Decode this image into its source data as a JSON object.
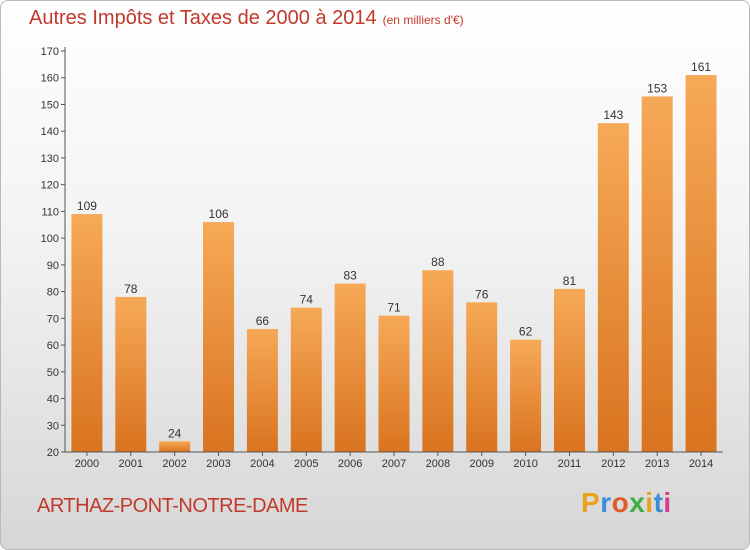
{
  "chart_data": {
    "type": "bar",
    "title": "Autres Impôts et Taxes de 2000 à 2014",
    "subtitle": "(en milliers d'€)",
    "categories": [
      "2000",
      "2001",
      "2002",
      "2003",
      "2004",
      "2005",
      "2006",
      "2007",
      "2008",
      "2009",
      "2010",
      "2011",
      "2012",
      "2013",
      "2014"
    ],
    "values": [
      109,
      78,
      24,
      106,
      66,
      74,
      83,
      71,
      88,
      76,
      62,
      81,
      143,
      153,
      161
    ],
    "ylim": [
      20,
      170
    ],
    "yticks": [
      20,
      30,
      40,
      50,
      60,
      70,
      80,
      90,
      100,
      110,
      120,
      130,
      140,
      150,
      160,
      170
    ],
    "grid": false,
    "bar_color": "#f0923a",
    "bar_color_dark": "#d9731f"
  },
  "footer": {
    "commune": "ARTHAZ-PONT-NOTRE-DAME",
    "logo": "Proxiti",
    "logo_colors": [
      "#e8a21b",
      "#3b8fd6",
      "#e05a2a",
      "#3fae3f",
      "#e8a21b",
      "#3b8fd6",
      "#d63a8a"
    ]
  }
}
